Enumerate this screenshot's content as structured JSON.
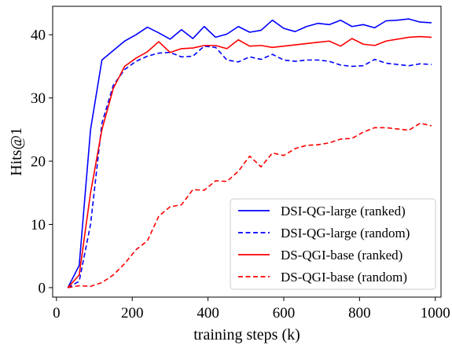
{
  "chart_data": {
    "type": "line",
    "title": "",
    "xlabel": "training steps (k)",
    "ylabel": "Hits@1",
    "xlim": [
      -10,
      1015
    ],
    "ylim": [
      -1.5,
      44.5
    ],
    "xticks": [
      0,
      200,
      400,
      600,
      800,
      1000
    ],
    "yticks": [
      0,
      10,
      20,
      30,
      40
    ],
    "grid": false,
    "legend_position": "lower-right",
    "series": [
      {
        "name": "DSI-QG-large (ranked)",
        "color": "#0000ff",
        "dash": "solid",
        "x": [
          30,
          60,
          90,
          120,
          150,
          180,
          210,
          240,
          270,
          300,
          330,
          360,
          390,
          420,
          450,
          480,
          510,
          540,
          570,
          600,
          630,
          660,
          690,
          720,
          750,
          780,
          810,
          840,
          870,
          900,
          930,
          960,
          990
        ],
        "y": [
          0,
          3.5,
          25,
          36,
          37.5,
          39,
          40,
          41.2,
          40.3,
          39.3,
          40.8,
          39.4,
          41.3,
          39.6,
          40.1,
          41.3,
          40.4,
          40.7,
          42.3,
          41,
          40.5,
          41.3,
          41.8,
          41.6,
          42.3,
          41.3,
          41.6,
          41.1,
          42.2,
          42.3,
          42.5,
          42,
          41.9
        ]
      },
      {
        "name": "DSI-QG-large (random)",
        "color": "#0000ff",
        "dash": "dashed",
        "x": [
          30,
          60,
          90,
          120,
          150,
          180,
          210,
          240,
          270,
          300,
          330,
          360,
          390,
          420,
          450,
          480,
          510,
          540,
          570,
          600,
          630,
          660,
          690,
          720,
          750,
          780,
          810,
          840,
          870,
          900,
          930,
          960,
          990
        ],
        "y": [
          0,
          1,
          10,
          26,
          32,
          34.5,
          35.8,
          36.6,
          37.1,
          37.2,
          36.5,
          36.6,
          38.2,
          38,
          36,
          35.7,
          36.5,
          36.1,
          36.9,
          36,
          35.8,
          36,
          36,
          35.8,
          35.2,
          35,
          35.1,
          36.1,
          35.5,
          35.3,
          35.1,
          35.4,
          35.3
        ]
      },
      {
        "name": "DS-QGI-base (ranked)",
        "color": "#ff0000",
        "dash": "solid",
        "x": [
          30,
          60,
          90,
          120,
          150,
          180,
          210,
          240,
          270,
          300,
          330,
          360,
          390,
          420,
          450,
          480,
          510,
          540,
          570,
          600,
          630,
          660,
          690,
          720,
          750,
          780,
          810,
          840,
          870,
          900,
          930,
          960,
          990
        ],
        "y": [
          0,
          2,
          15,
          25,
          31.5,
          35,
          36.3,
          37.3,
          38.9,
          37.2,
          37.8,
          37.9,
          38.3,
          38.3,
          37.8,
          39.2,
          38.2,
          38.3,
          38,
          38.2,
          38.4,
          38.6,
          38.8,
          39,
          38.2,
          39.4,
          38.5,
          38.3,
          39,
          39.3,
          39.6,
          39.7,
          39.6
        ]
      },
      {
        "name": "DS-QGI-base (random)",
        "color": "#ff0000",
        "dash": "dashed",
        "x": [
          30,
          60,
          90,
          120,
          150,
          180,
          210,
          240,
          270,
          300,
          330,
          360,
          390,
          420,
          450,
          480,
          510,
          540,
          570,
          600,
          630,
          660,
          690,
          720,
          750,
          780,
          810,
          840,
          870,
          900,
          930,
          960,
          990
        ],
        "y": [
          0,
          0.3,
          0.2,
          0.8,
          2,
          3.8,
          6,
          7.4,
          11.3,
          12.8,
          13.1,
          15.5,
          15.4,
          16.9,
          16.8,
          18.4,
          20.8,
          19.1,
          21.3,
          20.9,
          22,
          22.5,
          22.6,
          22.9,
          23.5,
          23.6,
          24.6,
          25.3,
          25.3,
          25.1,
          24.9,
          26,
          25.6
        ]
      }
    ]
  }
}
